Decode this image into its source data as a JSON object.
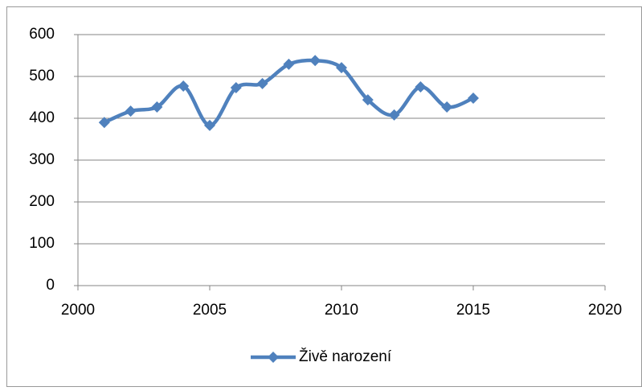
{
  "chart_data": {
    "type": "line",
    "x": [
      2001,
      2002,
      2003,
      2004,
      2005,
      2006,
      2007,
      2008,
      2009,
      2010,
      2011,
      2012,
      2013,
      2014,
      2015
    ],
    "series": [
      {
        "name": "Živě narození",
        "color": "#4f81bd",
        "values": [
          390,
          417,
          427,
          477,
          383,
          473,
          483,
          529,
          538,
          521,
          444,
          408,
          475,
          427,
          448
        ]
      }
    ],
    "xlim": [
      2000,
      2020
    ],
    "xticks": [
      2000,
      2005,
      2010,
      2015,
      2020
    ],
    "ylim": [
      0,
      600
    ],
    "yticks": [
      0,
      100,
      200,
      300,
      400,
      500,
      600
    ],
    "grid": true,
    "smooth": true,
    "legend": "bottom"
  }
}
